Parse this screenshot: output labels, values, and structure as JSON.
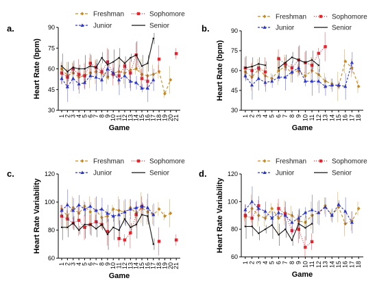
{
  "chart_data": [
    {
      "type": "line",
      "panel": "a.",
      "xlabel": "Game",
      "ylabel": "Heart  Rate (bpm)",
      "ylim": [
        30,
        90
      ],
      "yticks": [
        30,
        45,
        60,
        75,
        90
      ],
      "categories": [
        "1",
        "2",
        "3",
        "4",
        "5",
        "6",
        "7",
        "8",
        "9",
        "10",
        "11",
        "12",
        "13",
        "14",
        "15",
        "16",
        "17",
        "18",
        "19",
        "20",
        "21"
      ],
      "legend": "top",
      "series": [
        {
          "name": "Freshman",
          "color": "#c8891e",
          "dash": "4,3",
          "marker": "diamond",
          "values": [
            60,
            55,
            57,
            54,
            55,
            57,
            58,
            57,
            54,
            57,
            58,
            57,
            59,
            60,
            56,
            55,
            56,
            58,
            42,
            52,
            null
          ]
        },
        {
          "name": "Sophomore",
          "color": "#e5242b",
          "dash": "1,2",
          "marker": "square",
          "values": [
            57,
            54,
            60,
            56,
            55,
            64,
            61,
            58,
            65,
            56,
            55,
            62,
            57,
            70,
            53,
            51,
            null,
            67,
            null,
            null,
            71
          ]
        },
        {
          "name": "Junior",
          "color": "#2b36c8",
          "dash": "3,2",
          "marker": "triangle",
          "values": [
            53,
            47,
            53,
            49,
            50,
            55,
            54,
            52,
            60,
            57,
            52,
            55,
            51,
            50,
            46,
            46,
            52,
            null,
            null,
            null,
            null
          ]
        },
        {
          "name": "Senior",
          "color": "#111111",
          "dash": "",
          "marker": "none",
          "values": [
            62,
            58,
            61,
            60,
            60,
            62,
            61,
            68,
            63,
            65,
            68,
            64,
            68,
            70,
            62,
            64,
            82,
            null,
            null,
            null,
            null
          ]
        }
      ]
    },
    {
      "type": "line",
      "panel": "b.",
      "xlabel": "Game",
      "ylabel": "Heart  Rate (bpm)",
      "ylim": [
        30,
        90
      ],
      "yticks": [
        30,
        45,
        60,
        75,
        90
      ],
      "categories": [
        "1",
        "2",
        "3",
        "4",
        "5",
        "6",
        "7",
        "8",
        "9",
        "10",
        "11",
        "12",
        "13",
        "14",
        "15",
        "16",
        "17",
        "18"
      ],
      "legend": "top",
      "series": [
        {
          "name": "Freshman",
          "color": "#c8891e",
          "dash": "4,3",
          "marker": "diamond",
          "values": [
            59,
            55,
            61,
            56,
            54,
            60,
            63,
            58,
            60,
            56,
            60,
            57,
            52,
            50,
            48,
            67,
            62,
            48
          ]
        },
        {
          "name": "Sophomore",
          "color": "#e5242b",
          "dash": "1,2",
          "marker": "square",
          "values": [
            62,
            60,
            62,
            59,
            null,
            69,
            65,
            62,
            68,
            66,
            64,
            73,
            78,
            null,
            null,
            null,
            null,
            null
          ]
        },
        {
          "name": "Junior",
          "color": "#2b36c8",
          "dash": "3,2",
          "marker": "triangle",
          "values": [
            56,
            49,
            54,
            51,
            52,
            55,
            55,
            59,
            62,
            52,
            52,
            52,
            48,
            49,
            49,
            48,
            66,
            null
          ]
        },
        {
          "name": "Senior",
          "color": "#111111",
          "dash": "",
          "marker": "none",
          "values": [
            62,
            63,
            65,
            64,
            null,
            62,
            66,
            70,
            68,
            66,
            68,
            64,
            null,
            null,
            null,
            null,
            null,
            null
          ]
        }
      ]
    },
    {
      "type": "line",
      "panel": "c.",
      "xlabel": "Game",
      "ylabel": "Heart  Rate Variability",
      "ylim": [
        60,
        120
      ],
      "yticks": [
        60,
        80,
        100,
        120
      ],
      "categories": [
        "1",
        "2",
        "3",
        "4",
        "5",
        "6",
        "7",
        "8",
        "9",
        "10",
        "11",
        "12",
        "13",
        "14",
        "15",
        "16",
        "17",
        "18",
        "19",
        "20",
        "21"
      ],
      "legend": "top",
      "series": [
        {
          "name": "Freshman",
          "color": "#c8891e",
          "dash": "4,3",
          "marker": "diamond",
          "values": [
            95,
            90,
            96,
            92,
            97,
            93,
            94,
            89,
            90,
            95,
            94,
            93,
            96,
            92,
            96,
            93,
            91,
            95,
            90,
            92,
            null
          ]
        },
        {
          "name": "Sophomore",
          "color": "#e5242b",
          "dash": "1,2",
          "marker": "square",
          "values": [
            90,
            88,
            85,
            87,
            82,
            84,
            86,
            84,
            79,
            null,
            74,
            73,
            78,
            91,
            97,
            null,
            null,
            72,
            null,
            null,
            73
          ]
        },
        {
          "name": "Junior",
          "color": "#2b36c8",
          "dash": "3,2",
          "marker": "triangle",
          "values": [
            94,
            98,
            94,
            98,
            95,
            97,
            94,
            95,
            92,
            90,
            91,
            93,
            95,
            96,
            97,
            96,
            91,
            null,
            null,
            null,
            null
          ]
        },
        {
          "name": "Senior",
          "color": "#111111",
          "dash": "",
          "marker": "none",
          "values": [
            82,
            82,
            85,
            80,
            84,
            84,
            81,
            84,
            77,
            82,
            80,
            88,
            82,
            84,
            91,
            90,
            70,
            null,
            null,
            null,
            null
          ]
        }
      ]
    },
    {
      "type": "line",
      "panel": "d.",
      "xlabel": "Game",
      "ylabel": "Heart  Rate Variability",
      "ylim": [
        60,
        120
      ],
      "yticks": [
        60,
        80,
        100,
        120
      ],
      "categories": [
        "1",
        "2",
        "3",
        "4",
        "5",
        "6",
        "7",
        "8",
        "9",
        "10",
        "11",
        "12",
        "13",
        "14",
        "15",
        "16",
        "17",
        "18"
      ],
      "legend": "top",
      "series": [
        {
          "name": "Freshman",
          "color": "#c8891e",
          "dash": "4,3",
          "marker": "diamond",
          "values": [
            89,
            95,
            90,
            88,
            95,
            88,
            92,
            90,
            86,
            85,
            90,
            92,
            97,
            90,
            96,
            84,
            86,
            95
          ]
        },
        {
          "name": "Sophomore",
          "color": "#e5242b",
          "dash": "1,2",
          "marker": "square",
          "values": [
            90,
            88,
            97,
            null,
            null,
            95,
            91,
            79,
            80,
            67,
            71,
            null,
            null,
            null,
            null,
            null,
            null,
            null
          ]
        },
        {
          "name": "Junior",
          "color": "#2b36c8",
          "dash": "3,2",
          "marker": "triangle",
          "values": [
            94,
            100,
            95,
            93,
            88,
            92,
            90,
            85,
            88,
            92,
            94,
            92,
            96,
            90,
            98,
            93,
            85,
            null
          ]
        },
        {
          "name": "Senior",
          "color": "#111111",
          "dash": "",
          "marker": "none",
          "values": [
            82,
            82,
            77,
            80,
            83,
            76,
            80,
            72,
            84,
            81,
            84,
            null,
            null,
            null,
            null,
            null,
            null,
            null
          ]
        }
      ]
    }
  ]
}
